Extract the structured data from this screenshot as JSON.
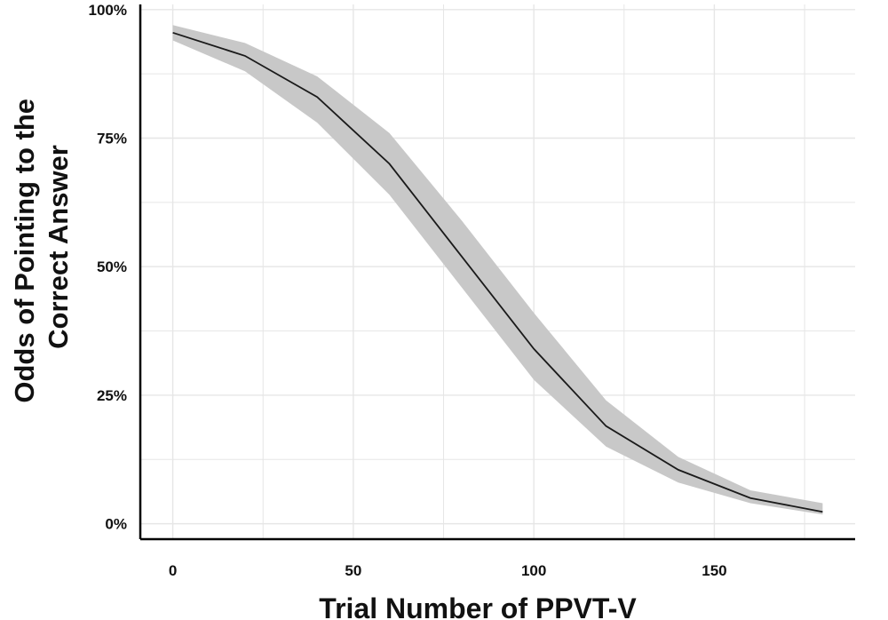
{
  "chart_data": {
    "type": "line",
    "title": "",
    "xlabel": "Trial Number of PPVT-V",
    "ylabel_lines": [
      "Odds of Pointing to the",
      "Correct Answer"
    ],
    "x_ticks": [
      0,
      50,
      100,
      150
    ],
    "x_tick_labels": [
      "0",
      "50",
      "100",
      "150"
    ],
    "y_ticks": [
      0,
      25,
      50,
      75,
      100
    ],
    "y_tick_labels": [
      "0%",
      "25%",
      "50%",
      "75%",
      "100%"
    ],
    "xlim": [
      -9,
      189
    ],
    "ylim": [
      -3,
      101
    ],
    "grid": true,
    "legend": "none",
    "colors": {
      "line": "#1a1a1a",
      "band": "#c8c8c8",
      "grid": "#e6e6e6",
      "axis": "#000000"
    },
    "series": [
      {
        "x": [
          0,
          20,
          40,
          60,
          80,
          100,
          120,
          140,
          160,
          180
        ],
        "y": [
          95.5,
          91,
          83,
          70,
          52,
          34,
          19,
          10.5,
          5,
          2.3
        ],
        "lower": [
          94,
          88,
          78,
          64,
          46,
          28,
          15,
          8,
          4,
          1.8
        ],
        "upper": [
          97,
          93.5,
          87,
          76,
          59,
          41,
          24,
          13,
          6.5,
          4
        ]
      }
    ]
  }
}
